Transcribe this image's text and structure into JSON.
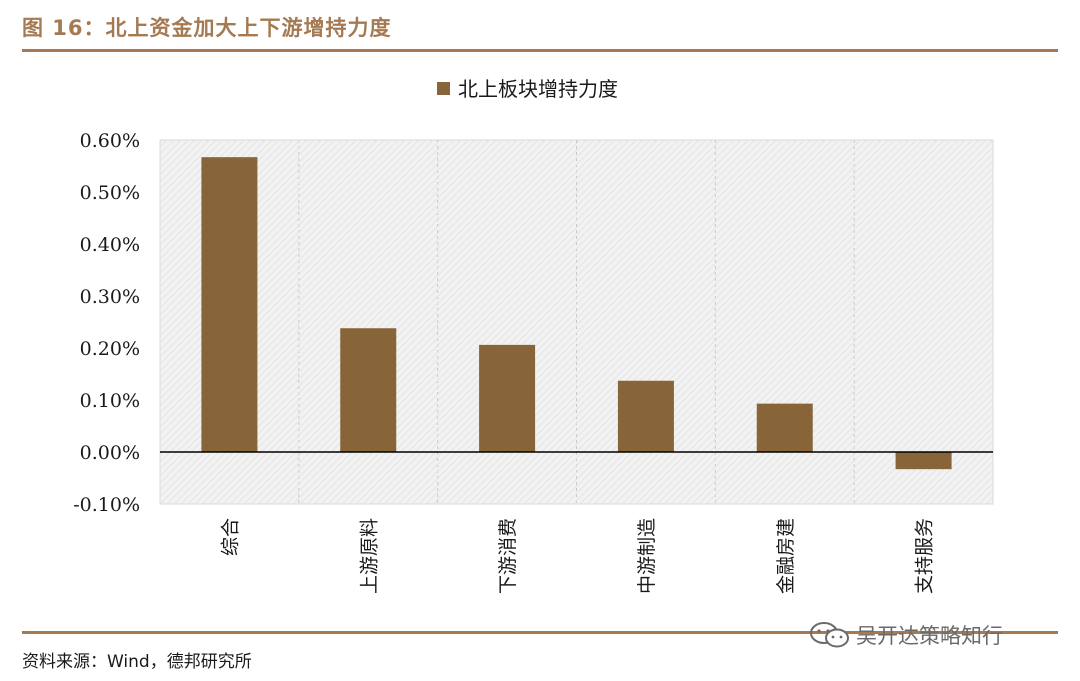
{
  "header": {
    "figure_title": "图 16：北上资金加大上下游增持力度"
  },
  "footer": {
    "source": "资料来源：Wind，德邦研究所",
    "watermark": "吴开达策略知行"
  },
  "colors": {
    "accent": "#a57a52",
    "bar": "#876538",
    "plot_bg": "#f2f2f2"
  },
  "chart_data": {
    "type": "bar",
    "title": "",
    "xlabel": "",
    "ylabel": "",
    "categories": [
      "综合",
      "上游原料",
      "下游消费",
      "中游制造",
      "金融房建",
      "支持服务"
    ],
    "series": [
      {
        "name": "北上板块增持力度",
        "values": [
          0.567,
          0.238,
          0.206,
          0.137,
          0.093,
          -0.033
        ]
      }
    ],
    "ylim": [
      -0.1,
      0.6
    ],
    "yticks": [
      "0.60%",
      "0.50%",
      "0.40%",
      "0.30%",
      "0.20%",
      "0.10%",
      "0.00%",
      "-0.10%"
    ],
    "unit": "%",
    "legend_position": "top-center",
    "grid": "vertical-dashed"
  }
}
